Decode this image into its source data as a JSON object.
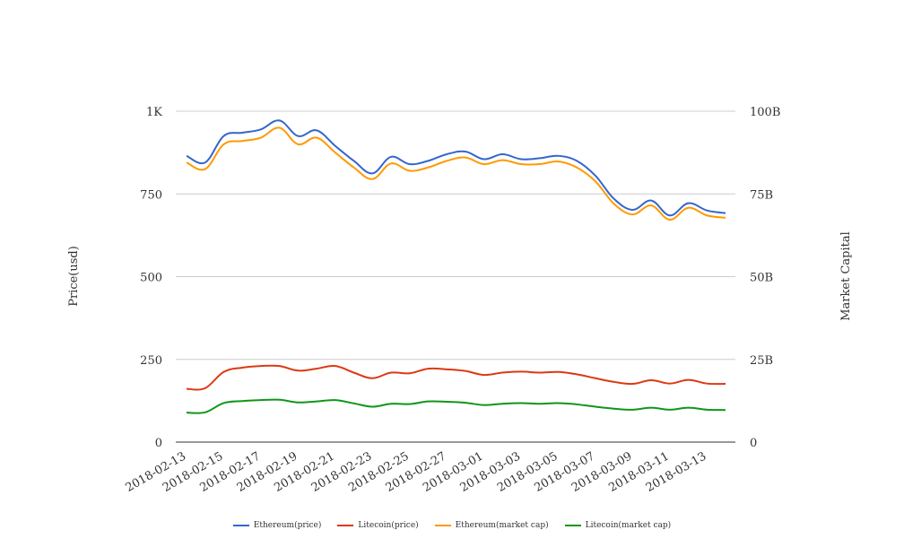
{
  "chart_data": {
    "type": "line",
    "title": "",
    "xlabel": "",
    "ylabel_left": "Price(usd)",
    "ylabel_right": "Market Capital",
    "ylim_left": [
      0,
      1000
    ],
    "ylim_right": [
      0,
      100000000000
    ],
    "yticks_left": [
      {
        "value": 0,
        "label": "0"
      },
      {
        "value": 250,
        "label": "250"
      },
      {
        "value": 500,
        "label": "500"
      },
      {
        "value": 750,
        "label": "750"
      },
      {
        "value": 1000,
        "label": "1K"
      }
    ],
    "yticks_right": [
      {
        "value": 0,
        "label": "0"
      },
      {
        "value": 25000000000,
        "label": "25B"
      },
      {
        "value": 50000000000,
        "label": "50B"
      },
      {
        "value": 75000000000,
        "label": "75B"
      },
      {
        "value": 100000000000,
        "label": "100B"
      }
    ],
    "grid": true,
    "legend_position": "bottom-center",
    "x": [
      "2018-02-13",
      "2018-02-14",
      "2018-02-15",
      "2018-02-16",
      "2018-02-17",
      "2018-02-18",
      "2018-02-19",
      "2018-02-20",
      "2018-02-21",
      "2018-02-22",
      "2018-02-23",
      "2018-02-24",
      "2018-02-25",
      "2018-02-26",
      "2018-02-27",
      "2018-02-28",
      "2018-03-01",
      "2018-03-02",
      "2018-03-03",
      "2018-03-04",
      "2018-03-05",
      "2018-03-06",
      "2018-03-07",
      "2018-03-08",
      "2018-03-09",
      "2018-03-10",
      "2018-03-11",
      "2018-03-12",
      "2018-03-13",
      "2018-03-14"
    ],
    "x_tick_labels": [
      "2018-02-13",
      "2018-02-15",
      "2018-02-17",
      "2018-02-19",
      "2018-02-21",
      "2018-02-23",
      "2018-02-25",
      "2018-02-27",
      "2018-03-01",
      "2018-03-03",
      "2018-03-05",
      "2018-03-07",
      "2018-03-09",
      "2018-03-11",
      "2018-03-13"
    ],
    "series": [
      {
        "name": "Ethereum(price)",
        "axis": "left",
        "color": "#3366cc",
        "values": [
          865,
          845,
          925,
          935,
          945,
          972,
          925,
          942,
          895,
          850,
          812,
          862,
          840,
          850,
          870,
          878,
          855,
          870,
          855,
          858,
          865,
          850,
          805,
          735,
          702,
          730,
          685,
          722,
          700,
          692
        ]
      },
      {
        "name": "Litecoin(price)",
        "axis": "left",
        "color": "#dc3912",
        "values": [
          161,
          163,
          212,
          225,
          230,
          230,
          216,
          222,
          230,
          210,
          193,
          210,
          208,
          222,
          220,
          215,
          203,
          210,
          213,
          210,
          212,
          205,
          193,
          182,
          176,
          187,
          177,
          188,
          177,
          176
        ]
      },
      {
        "name": "Ethereum(market cap)",
        "axis": "right",
        "color": "#ff9900",
        "values": [
          84500000000,
          82500000000,
          90000000000,
          91000000000,
          92000000000,
          95000000000,
          90000000000,
          92000000000,
          87500000000,
          83000000000,
          79500000000,
          84200000000,
          82000000000,
          83000000000,
          85000000000,
          86000000000,
          84000000000,
          85200000000,
          84000000000,
          84000000000,
          84800000000,
          83000000000,
          78800000000,
          72000000000,
          68800000000,
          71500000000,
          67200000000,
          70800000000,
          68500000000,
          67800000000
        ]
      },
      {
        "name": "Litecoin(market cap)",
        "axis": "right",
        "color": "#109618",
        "values": [
          8900000000,
          9000000000,
          11800000000,
          12400000000,
          12700000000,
          12800000000,
          12000000000,
          12300000000,
          12700000000,
          11700000000,
          10700000000,
          11600000000,
          11500000000,
          12300000000,
          12200000000,
          11900000000,
          11200000000,
          11600000000,
          11800000000,
          11600000000,
          11800000000,
          11400000000,
          10700000000,
          10100000000,
          9800000000,
          10400000000,
          9800000000,
          10400000000,
          9800000000,
          9700000000
        ]
      }
    ]
  }
}
